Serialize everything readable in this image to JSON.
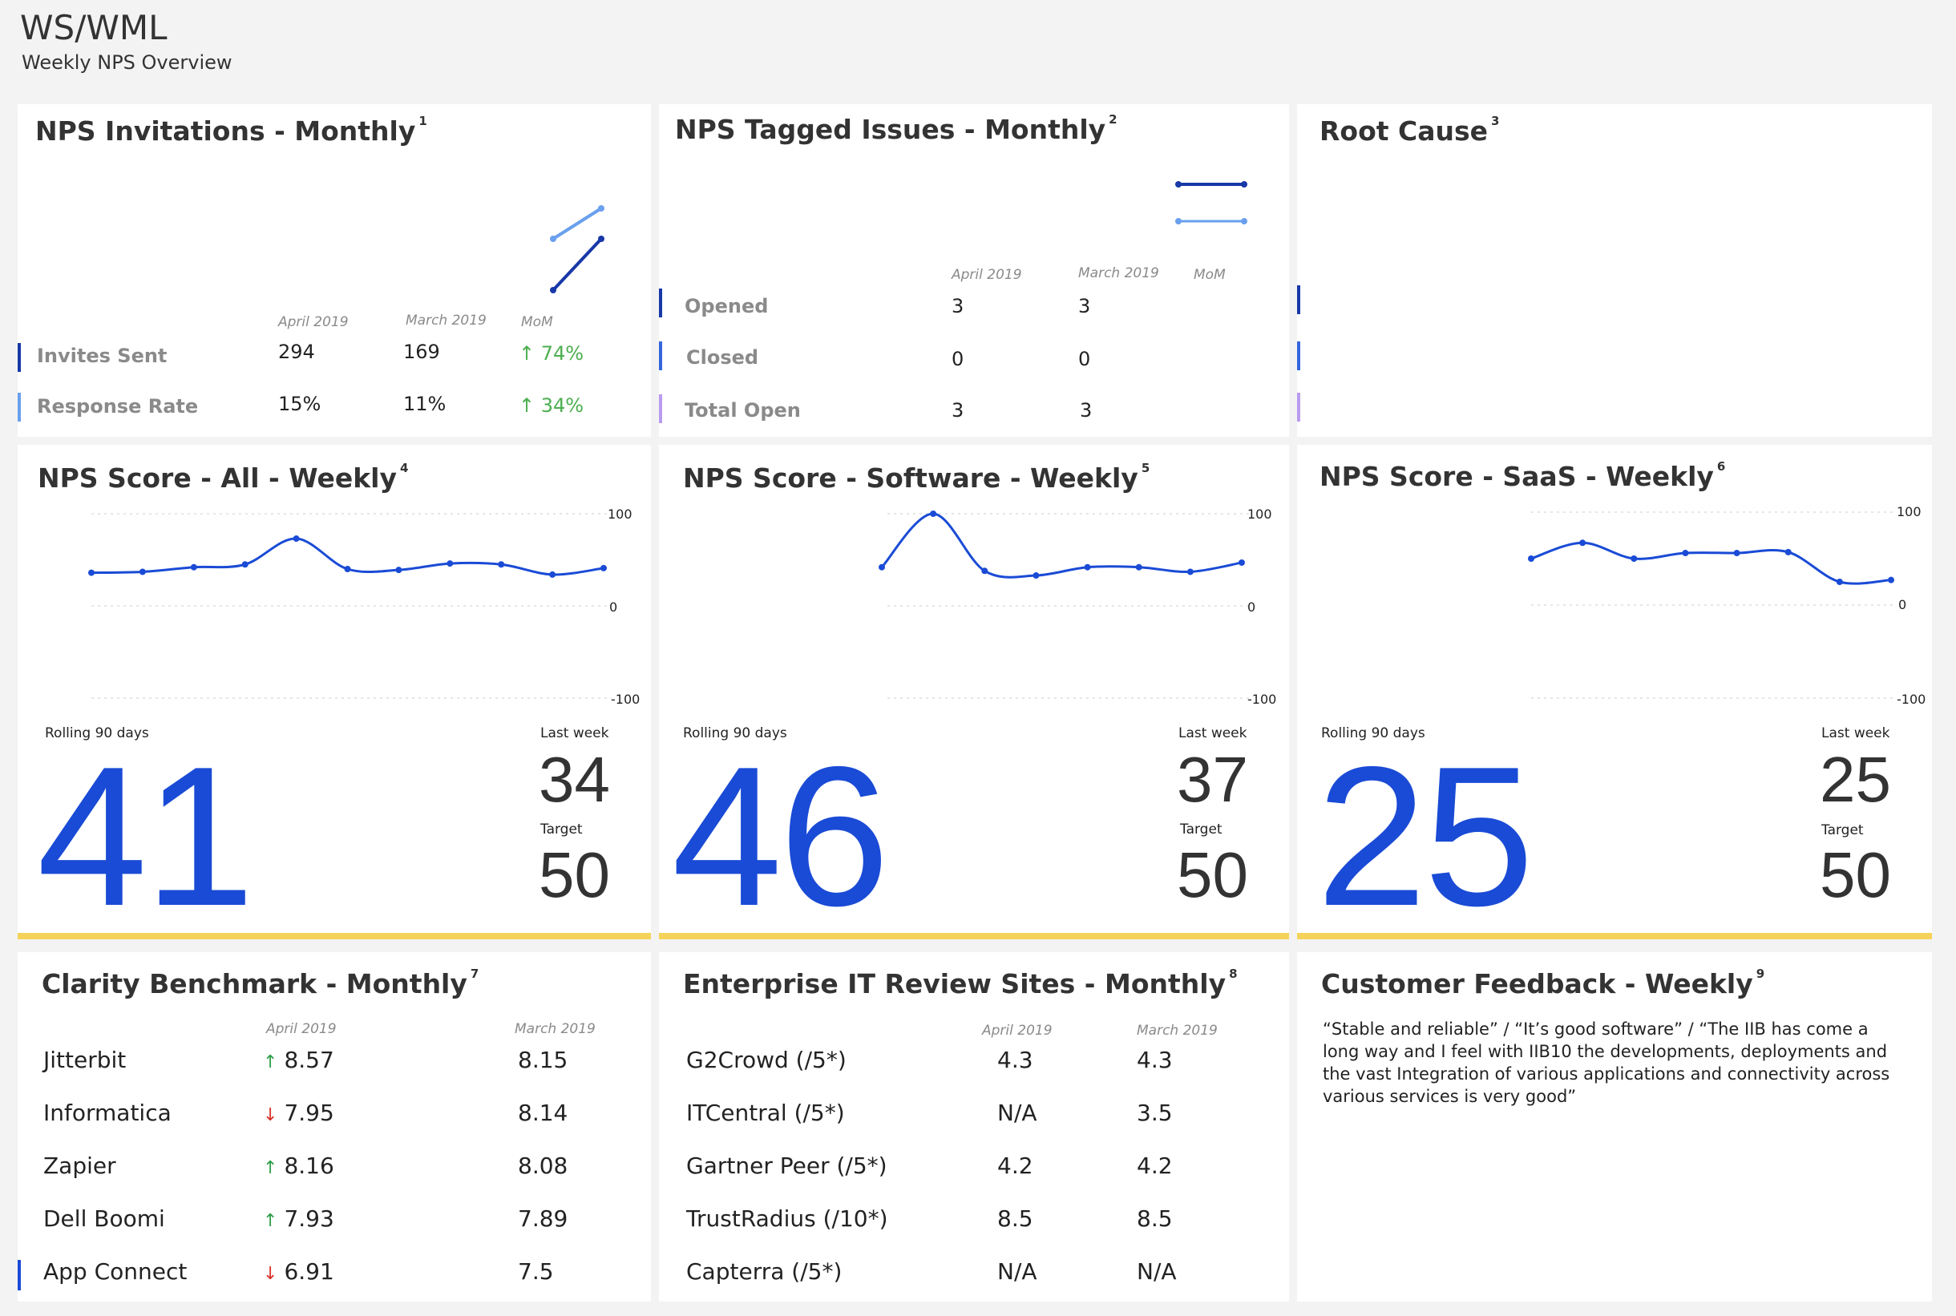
{
  "header": {
    "title": "WS/WML",
    "subtitle": "Weekly NPS Overview"
  },
  "invitations": {
    "title": "NPS Invitations - Monthly",
    "footnote": "1",
    "cols": [
      "April 2019",
      "March 2019",
      "MoM"
    ],
    "rows": [
      {
        "label": "Invites Sent",
        "april": "294",
        "march": "169",
        "mom": "74%",
        "color": "#1838a8"
      },
      {
        "label": "Response Rate",
        "april": "15%",
        "march": "11%",
        "mom": "34%",
        "color": "#6aa0ee"
      }
    ]
  },
  "issues": {
    "title": "NPS Tagged Issues - Monthly",
    "footnote": "2",
    "cols": [
      "April 2019",
      "March 2019",
      "MoM"
    ],
    "rows": [
      {
        "label": "Opened",
        "april": "3",
        "march": "3",
        "color": "#1838a8"
      },
      {
        "label": "Closed",
        "april": "0",
        "march": "0",
        "color": "#3366dd"
      },
      {
        "label": "Total Open",
        "april": "3",
        "march": "3",
        "color": "#b99cf0"
      }
    ]
  },
  "root_cause": {
    "title": "Root Cause",
    "footnote": "3",
    "bar_colors": [
      "#1838a8",
      "#3366dd",
      "#b99cf0"
    ]
  },
  "nps_all": {
    "title": "NPS Score - All - Weekly",
    "footnote": "4",
    "rolling_label": "Rolling 90 days",
    "rolling": "41",
    "last_week_label": "Last week",
    "last_week": "34",
    "target_label": "Target",
    "target": "50"
  },
  "nps_software": {
    "title": "NPS Score - Software - Weekly",
    "footnote": "5",
    "rolling_label": "Rolling 90 days",
    "rolling": "46",
    "last_week_label": "Last week",
    "last_week": "37",
    "target_label": "Target",
    "target": "50"
  },
  "nps_saas": {
    "title": "NPS Score - SaaS - Weekly",
    "footnote": "6",
    "rolling_label": "Rolling 90 days",
    "rolling": "25",
    "last_week_label": "Last week",
    "last_week": "25",
    "target_label": "Target",
    "target": "50"
  },
  "clarity": {
    "title": "Clarity Benchmark - Monthly",
    "footnote": "7",
    "cols": [
      "April 2019",
      "March 2019"
    ],
    "rows": [
      {
        "label": "Jitterbit",
        "trend": "up",
        "april": "8.57",
        "march": "8.15"
      },
      {
        "label": "Informatica",
        "trend": "down",
        "april": "7.95",
        "march": "8.14"
      },
      {
        "label": "Zapier",
        "trend": "up",
        "april": "8.16",
        "march": "8.08"
      },
      {
        "label": "Dell Boomi",
        "trend": "up",
        "april": "7.93",
        "march": "7.89"
      },
      {
        "label": "App Connect",
        "trend": "down",
        "april": "6.91",
        "march": "7.5"
      }
    ]
  },
  "review_sites": {
    "title": "Enterprise IT Review Sites - Monthly",
    "footnote": "8",
    "cols": [
      "April 2019",
      "March 2019"
    ],
    "rows": [
      {
        "label": "G2Crowd (/5*)",
        "april": "4.3",
        "march": "4.3"
      },
      {
        "label": "ITCentral (/5*)",
        "april": "N/A",
        "march": "3.5"
      },
      {
        "label": "Gartner Peer (/5*)",
        "april": "4.2",
        "march": "4.2"
      },
      {
        "label": "TrustRadius (/10*)",
        "april": "8.5",
        "march": "8.5"
      },
      {
        "label": "Capterra (/5*)",
        "april": "N/A",
        "march": "N/A"
      }
    ]
  },
  "feedback": {
    "title": "Customer Feedback - Weekly",
    "footnote": "9",
    "text": "“Stable and reliable” / “It’s good software” / “The IIB has come a long way and I feel with IIB10 the developments, deployments and the vast Integration of various applications and connectivity across various services is very good”"
  },
  "chart_data": [
    {
      "type": "line",
      "title": "NPS Score - All - Weekly",
      "ylim": [
        -100,
        100
      ],
      "yticks": [
        "100",
        "0",
        "-100"
      ],
      "grid": true,
      "series": [
        {
          "values": [
            36,
            37,
            42,
            45,
            73,
            40,
            39,
            46,
            45,
            34,
            41
          ]
        }
      ]
    },
    {
      "type": "line",
      "title": "NPS Score - Software - Weekly",
      "ylim": [
        -100,
        100
      ],
      "yticks": [
        "100",
        "0",
        "-100"
      ],
      "grid": true,
      "series": [
        {
          "values": [
            42,
            100,
            38,
            33,
            42,
            42,
            37,
            47
          ]
        }
      ]
    },
    {
      "type": "line",
      "title": "NPS Score - SaaS - Weekly",
      "ylim": [
        -100,
        100
      ],
      "yticks": [
        "100",
        "0",
        "-100"
      ],
      "grid": true,
      "series": [
        {
          "values": [
            50,
            67,
            50,
            56,
            56,
            57,
            25,
            27
          ]
        }
      ]
    },
    {
      "type": "line",
      "title": "NPS Invitations - Monthly",
      "categories": [
        "March 2019",
        "April 2019"
      ],
      "series": [
        {
          "name": "Invites Sent",
          "values": [
            169,
            294
          ],
          "color": "#1838a8"
        },
        {
          "name": "Response Rate",
          "values": [
            11,
            15
          ],
          "color": "#6aa0ee"
        }
      ]
    },
    {
      "type": "line",
      "title": "NPS Tagged Issues - Monthly",
      "categories": [
        "March 2019",
        "April 2019"
      ],
      "series": [
        {
          "name": "Opened",
          "values": [
            3,
            3
          ],
          "color": "#1838a8"
        },
        {
          "name": "Closed",
          "values": [
            0,
            0
          ],
          "color": "#6aa0ee"
        }
      ]
    }
  ],
  "colors": {
    "accent": "#1a4bd6",
    "target_bar": "#f5d35a",
    "up": "#2e9e4a",
    "down": "#d9342b"
  }
}
